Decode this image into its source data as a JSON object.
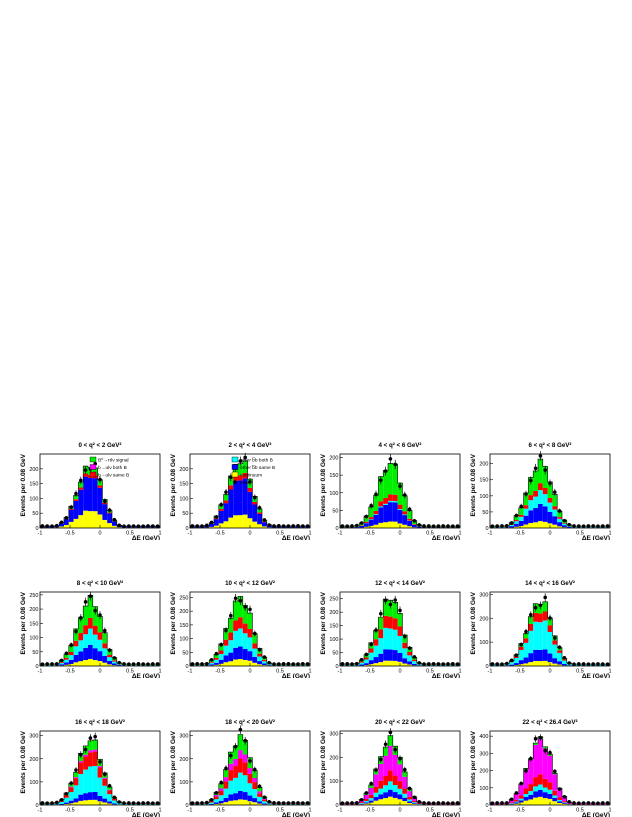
{
  "figure": {
    "ylabel": "Events per 0.08 GeV",
    "xlabel": "ΔE (GeV)",
    "xticks": [
      "-1",
      "-0.5",
      "0",
      "0.5",
      "1"
    ],
    "legend_left": [
      {
        "label": "B⁰→πlν signal",
        "color": "#00ee00"
      },
      {
        "label": "b→ulν both B",
        "color": "#ff00ff"
      },
      {
        "label": "b→ulν same B",
        "color": "#ff0000"
      }
    ],
    "legend_right": [
      {
        "label": "other b̅b both B",
        "color": "#00ffff"
      },
      {
        "label": "other b̅b same B",
        "color": "#0000ff"
      },
      {
        "label": "continuum",
        "color": "#ffff00"
      },
      {
        "label": "data",
        "marker": "dot"
      }
    ]
  },
  "chart_data": [
    {
      "type": "area",
      "title": "0 < q² < 2 GeV²",
      "peak": 215,
      "ylim": [
        0,
        250
      ],
      "yticks": [
        0,
        50,
        100,
        150,
        200
      ],
      "fractions": [
        0.12,
        0.0,
        0.05,
        0.0,
        0.55,
        0.28
      ]
    },
    {
      "type": "area",
      "title": "2 < q² < 4 GeV²",
      "peak": 230,
      "ylim": [
        0,
        250
      ],
      "yticks": [
        0,
        50,
        100,
        150,
        200
      ],
      "fractions": [
        0.18,
        0.0,
        0.08,
        0.0,
        0.54,
        0.2
      ]
    },
    {
      "type": "area",
      "title": "4 < q² < 6 GeV²",
      "peak": 185,
      "ylim": [
        0,
        210
      ],
      "yticks": [
        0,
        50,
        100,
        150,
        200
      ],
      "fractions": [
        0.48,
        0.0,
        0.1,
        0.02,
        0.3,
        0.1
      ]
    },
    {
      "type": "area",
      "title": "6 < q² < 8 GeV²",
      "peak": 205,
      "ylim": [
        0,
        230
      ],
      "yticks": [
        0,
        50,
        100,
        150,
        200
      ],
      "fractions": [
        0.35,
        0.0,
        0.1,
        0.2,
        0.25,
        0.1
      ]
    },
    {
      "type": "area",
      "title": "8 < q² < 10 GeV²",
      "peak": 235,
      "ylim": [
        0,
        260
      ],
      "yticks": [
        0,
        50,
        100,
        150,
        200,
        250
      ],
      "fractions": [
        0.32,
        0.0,
        0.15,
        0.23,
        0.2,
        0.1
      ]
    },
    {
      "type": "area",
      "title": "10 < q² < 12 GeV²",
      "peak": 250,
      "ylim": [
        0,
        270
      ],
      "yticks": [
        0,
        50,
        100,
        150,
        200,
        250
      ],
      "fractions": [
        0.3,
        0.0,
        0.16,
        0.26,
        0.18,
        0.1
      ]
    },
    {
      "type": "area",
      "title": "12 < q² < 14 GeV²",
      "peak": 255,
      "ylim": [
        0,
        275
      ],
      "yticks": [
        0,
        50,
        100,
        150,
        200,
        250
      ],
      "fractions": [
        0.25,
        0.0,
        0.18,
        0.32,
        0.17,
        0.08
      ]
    },
    {
      "type": "area",
      "title": "14 < q² < 16 GeV²",
      "peak": 275,
      "ylim": [
        0,
        310
      ],
      "yticks": [
        0,
        100,
        200,
        300
      ],
      "fractions": [
        0.15,
        0.0,
        0.14,
        0.45,
        0.18,
        0.08
      ]
    },
    {
      "type": "area",
      "title": "16 < q² < 18 GeV²",
      "peak": 285,
      "ylim": [
        0,
        320
      ],
      "yticks": [
        0,
        100,
        200,
        300
      ],
      "fractions": [
        0.15,
        0.03,
        0.22,
        0.4,
        0.12,
        0.08
      ]
    },
    {
      "type": "area",
      "title": "18 < q² < 20 GeV²",
      "peak": 295,
      "ylim": [
        0,
        320
      ],
      "yticks": [
        0,
        100,
        200,
        300
      ],
      "fractions": [
        0.22,
        0.12,
        0.2,
        0.26,
        0.12,
        0.08
      ]
    },
    {
      "type": "area",
      "title": "20 < q² < 22 GeV²",
      "peak": 275,
      "ylim": [
        0,
        310
      ],
      "yticks": [
        0,
        100,
        200,
        300
      ],
      "fractions": [
        0.15,
        0.35,
        0.16,
        0.12,
        0.1,
        0.12
      ]
    },
    {
      "type": "area",
      "title": "22 < q² < 26.4 GeV²",
      "peak": 385,
      "ylim": [
        0,
        430
      ],
      "yticks": [
        0,
        100,
        200,
        300,
        400
      ],
      "fractions": [
        0.03,
        0.52,
        0.15,
        0.08,
        0.1,
        0.12
      ]
    }
  ]
}
